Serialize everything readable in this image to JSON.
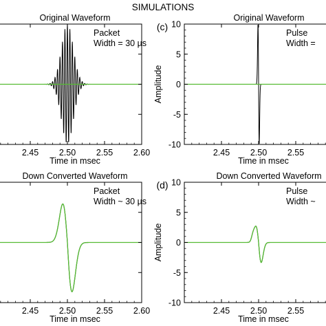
{
  "page_title": "SIMULATIONS",
  "chart_data": [
    {
      "type": "line",
      "title": "Original Waveform",
      "xlabel": "Time in msec",
      "ylabel": "",
      "panel_label": "",
      "annotation": [
        "Packet",
        "Width = 30 µs"
      ],
      "xlim": [
        2.4,
        2.6
      ],
      "ylim": [
        -10,
        10
      ],
      "x_ticks": [
        2.45,
        2.5,
        2.55,
        2.6
      ],
      "y_ticks": [],
      "series": [
        {
          "waveform": "packet",
          "center": 2.5,
          "amplitude": 10,
          "envelope_width_ms": 0.008,
          "carrier_cycles_per_ms": 300,
          "color": "#000000",
          "stroke_width": 1.0
        },
        {
          "waveform": "flat",
          "color": "#55bb33",
          "stroke_width": 1.3
        }
      ]
    },
    {
      "type": "line",
      "title": "Original Waveform",
      "xlabel": "Time in msec",
      "ylabel": "Amplitude",
      "panel_label": "(c)",
      "annotation": [
        "Pulse",
        "Width = "
      ],
      "xlim": [
        2.4,
        2.6
      ],
      "ylim": [
        -10,
        10
      ],
      "x_ticks": [
        2.45,
        2.5,
        2.55
      ],
      "y_ticks": [
        -10,
        -5,
        0,
        5,
        10
      ],
      "series": [
        {
          "waveform": "pulse",
          "center": 2.5,
          "amplitude": 10,
          "width_ms": 0.0008,
          "color": "#000000",
          "stroke_width": 1.0
        },
        {
          "waveform": "flat",
          "color": "#55bb33",
          "stroke_width": 1.3
        }
      ]
    },
    {
      "type": "line",
      "title": "Down Converted Waveform",
      "xlabel": "Time in msec",
      "ylabel": "",
      "panel_label": "",
      "annotation": [
        "Packet",
        "Width ~ 30 µs"
      ],
      "xlim": [
        2.4,
        2.6
      ],
      "ylim": [
        -10,
        10
      ],
      "x_ticks": [
        2.45,
        2.5,
        2.55,
        2.6
      ],
      "y_ticks": [],
      "series": [
        {
          "waveform": "downconverted",
          "center": 2.5,
          "amplitude": 6.4,
          "width_ms": 0.0062,
          "color": "#000000",
          "stroke_width": 1.1
        },
        {
          "waveform": "downconverted",
          "center": 2.5,
          "amplitude": 6.4,
          "width_ms": 0.0062,
          "color": "#55bb33",
          "stroke_width": 1.3
        }
      ]
    },
    {
      "type": "line",
      "title": "Down Converted Waveform",
      "xlabel": "Time in msec",
      "ylabel": "Amplitude",
      "panel_label": "(d)",
      "annotation": [
        "Pulse",
        "Width ~ "
      ],
      "xlim": [
        2.4,
        2.6
      ],
      "ylim": [
        -10,
        10
      ],
      "x_ticks": [
        2.45,
        2.5,
        2.55
      ],
      "y_ticks": [
        -10,
        -5,
        0,
        5,
        10
      ],
      "series": [
        {
          "waveform": "downconverted_small",
          "center": 2.5,
          "amplitude": 2.6,
          "width_ms": 0.0035,
          "color": "#000000",
          "stroke_width": 1.1
        },
        {
          "waveform": "downconverted_small",
          "center": 2.5,
          "amplitude": 2.6,
          "width_ms": 0.0035,
          "color": "#55bb33",
          "stroke_width": 1.3
        }
      ]
    }
  ]
}
